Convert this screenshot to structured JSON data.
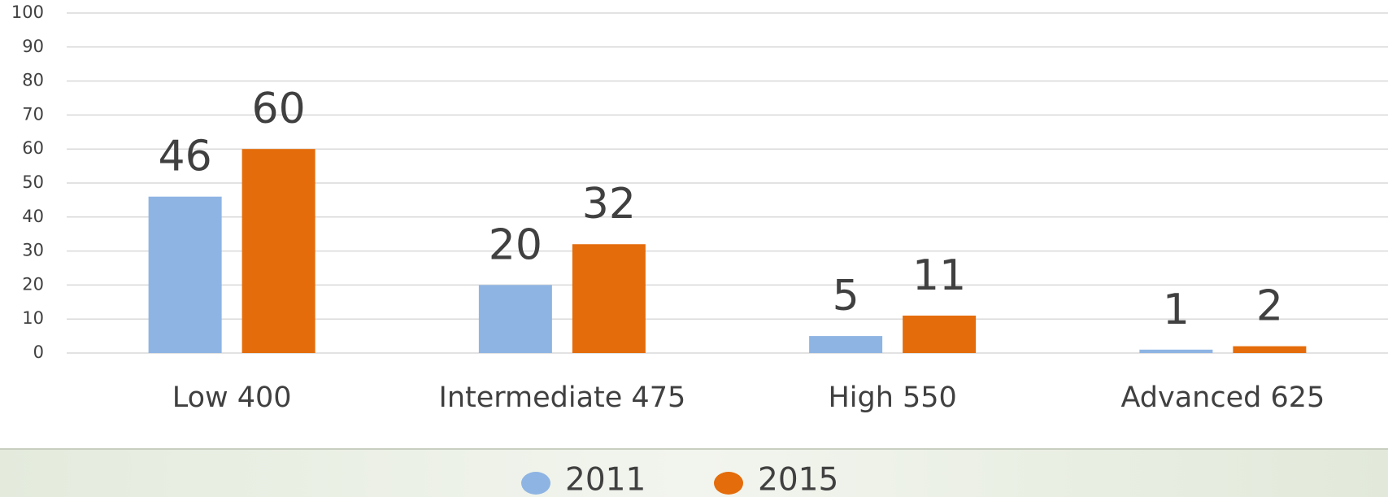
{
  "chart_data": {
    "type": "bar",
    "categories": [
      "Low 400",
      "Intermediate 475",
      "High 550",
      "Advanced 625"
    ],
    "series": [
      {
        "name": "2011",
        "color": "#8eb4e3",
        "values": [
          46,
          20,
          5,
          1
        ]
      },
      {
        "name": "2015",
        "color": "#e46c0a",
        "values": [
          60,
          32,
          11,
          2
        ]
      }
    ],
    "ylim": [
      0,
      100
    ],
    "yticks": [
      0,
      10,
      20,
      30,
      40,
      50,
      60,
      70,
      80,
      90,
      100
    ],
    "grid": true,
    "legend": "bottom"
  }
}
